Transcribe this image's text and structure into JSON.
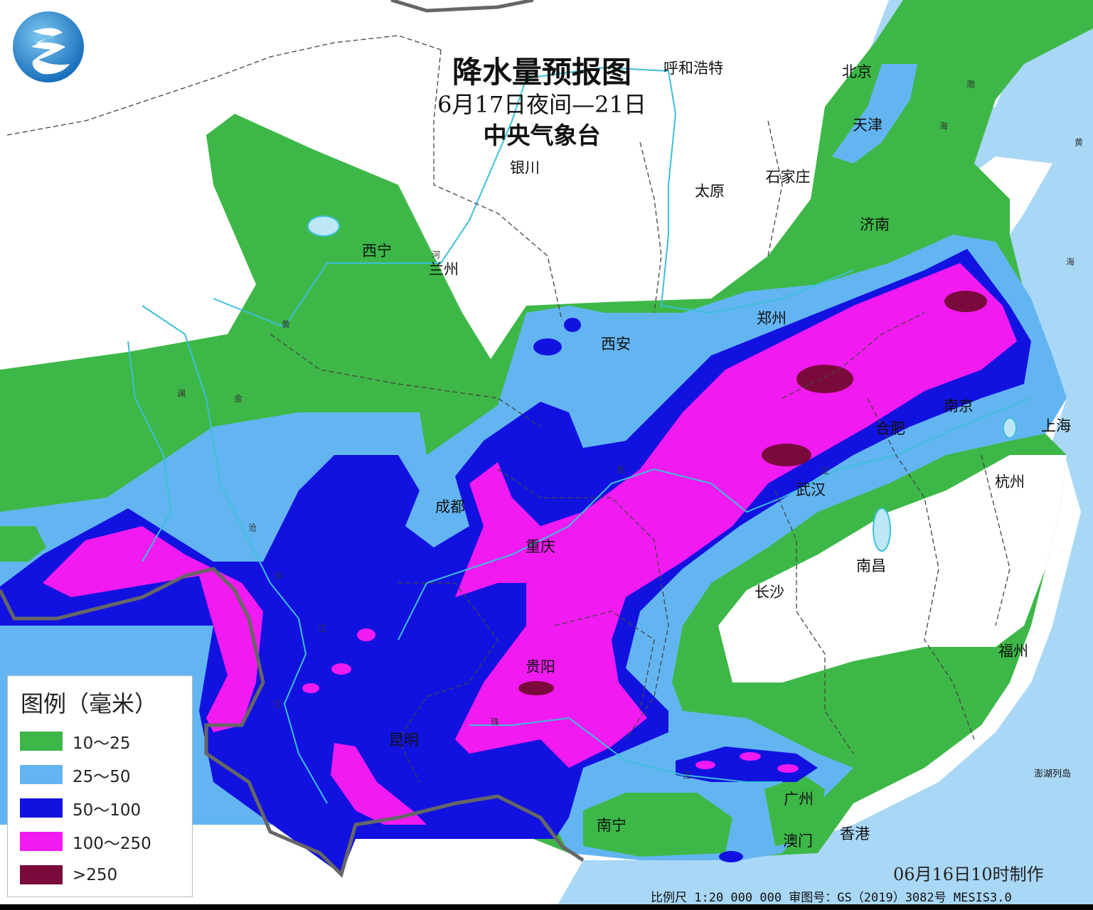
{
  "title": {
    "main": "降水量预报图",
    "period": "6月17日夜间—21日",
    "issuer": "中央气象台"
  },
  "colors": {
    "ocean": "#a9d7f6",
    "green": "#3db848",
    "light_blue": "#63b5f2",
    "blue": "#1212e0",
    "magenta": "#f11af0",
    "maroon": "#7b0a3c",
    "border": "#666666",
    "river": "#3cc0d8"
  },
  "legend": {
    "title": "图例（毫米）",
    "items": [
      {
        "label": "10～25",
        "color": "#3db848"
      },
      {
        "label": "25～50",
        "color": "#63b5f2"
      },
      {
        "label": "50～100",
        "color": "#1212e0"
      },
      {
        "label": "100～250",
        "color": "#f11af0"
      },
      {
        "label": ">250",
        "color": "#7b0a3c"
      }
    ]
  },
  "cities": [
    "呼和浩特",
    "北京",
    "天津",
    "银川",
    "太原",
    "石家庄",
    "济南",
    "西宁",
    "兰州",
    "郑州",
    "西安",
    "南京",
    "合肥",
    "上海",
    "成都",
    "武汉",
    "杭州",
    "重庆",
    "南昌",
    "长沙",
    "福州",
    "贵阳",
    "昆明",
    "广州",
    "南宁",
    "澳门",
    "香港",
    "澎湖列岛"
  ],
  "water_labels": [
    "黄",
    "河",
    "澜",
    "金",
    "沧",
    "沙",
    "江",
    "江",
    "长",
    "江",
    "珠",
    "江",
    "渤",
    "海",
    "黄",
    "海"
  ],
  "footer": {
    "made": "06月16日10时制作",
    "scale": "比例尺 1:20 000 000  审图号：GS（2019）3082号 MESIS3.0"
  },
  "logo": "cma-logo"
}
